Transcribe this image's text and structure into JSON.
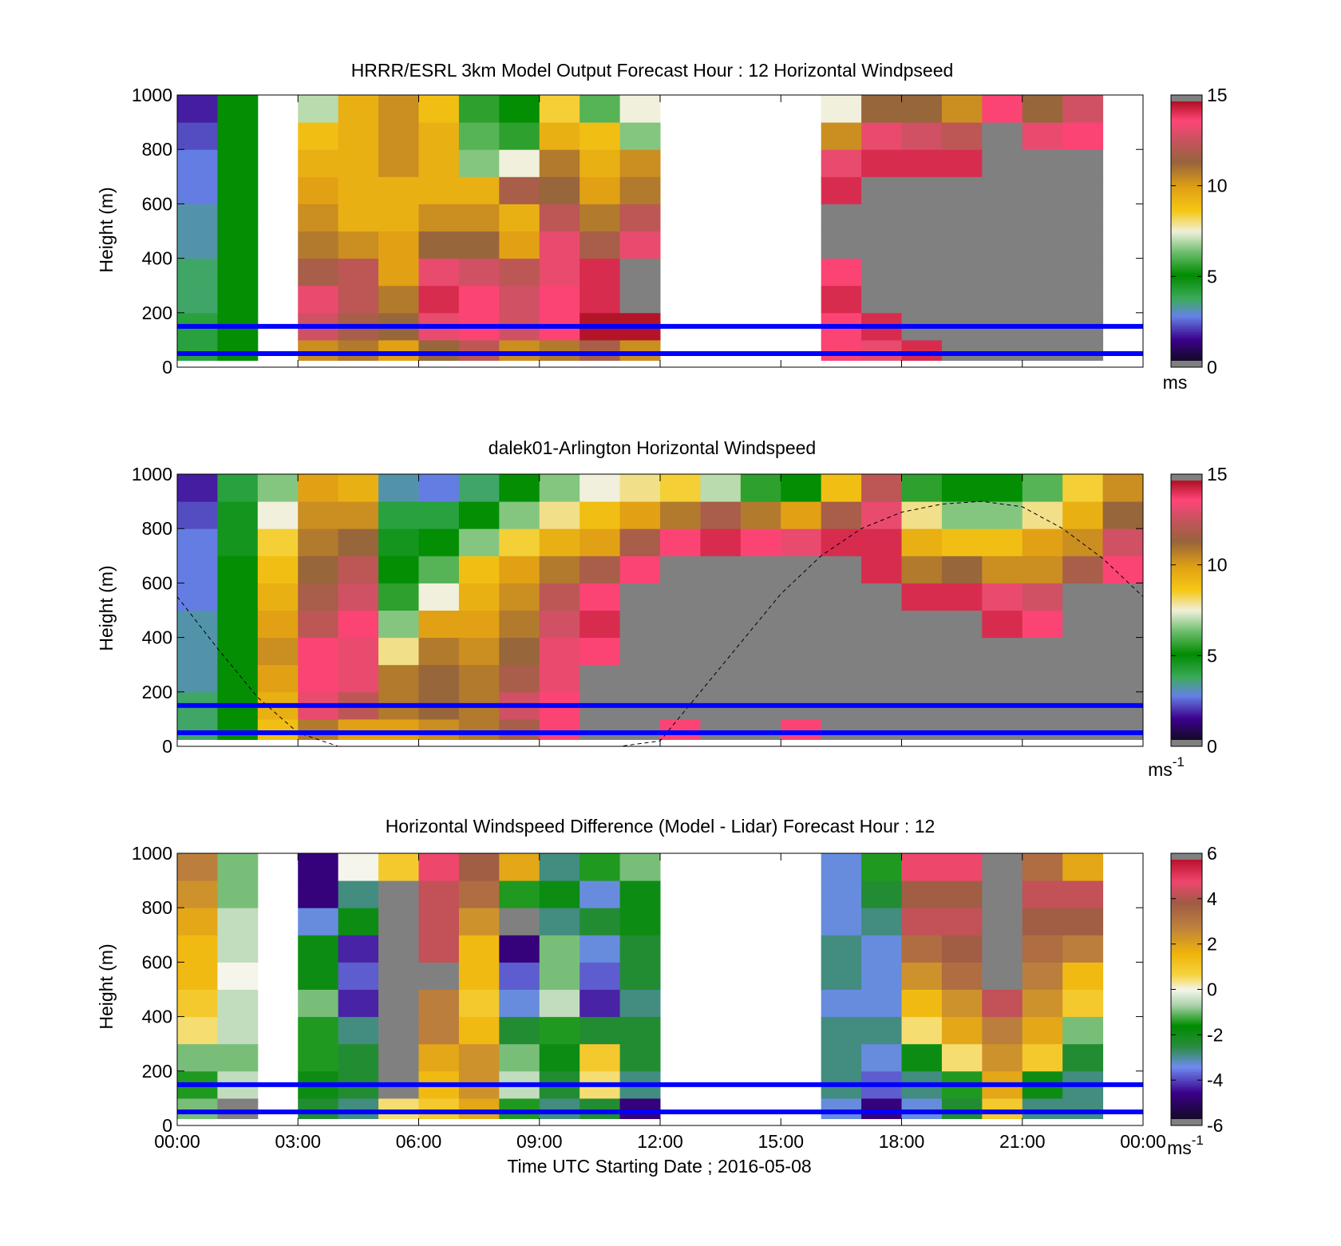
{
  "figure": {
    "xlabel": "Time UTC  Starting Date ; 2016-05-08",
    "x_tick_labels": [
      "00:00",
      "03:00",
      "06:00",
      "09:00",
      "12:00",
      "15:00",
      "18:00",
      "21:00",
      "00:00"
    ],
    "overlay_lines_color": "#0000ff",
    "missing_data_color": "#ffffff"
  },
  "chart_data": [
    {
      "type": "heatmap",
      "title": "HRRR/ESRL 3km Model Output   Forecast Hour : 12 Horizontal Windpseed",
      "ylabel": "Height (m)",
      "xlim_hours": [
        0,
        24
      ],
      "ylim": [
        0,
        1000
      ],
      "y_ticks": [
        0,
        200,
        400,
        600,
        800,
        1000
      ],
      "colorbar": {
        "range": [
          0,
          15
        ],
        "ticks": [
          0,
          5,
          10,
          15
        ],
        "unit": "ms",
        "out_of_range_color": "#808080"
      },
      "horizontal_lines_m": [
        150,
        50
      ],
      "hours": [
        0,
        1,
        3,
        4,
        5,
        6,
        7,
        8,
        9,
        10,
        11,
        16,
        17,
        18,
        19,
        20,
        21,
        22
      ],
      "heights_m": [
        50,
        150,
        250,
        350,
        450,
        550,
        650,
        750,
        850,
        950
      ],
      "values": [
        [
          4.0,
          5.0,
          10.5,
          11.0,
          10.0,
          11.5,
          12.5,
          10.5,
          11.0,
          12.0,
          10.5,
          14.0,
          13.5,
          14.5,
          16.0,
          16.0,
          16.0,
          16.0
        ],
        [
          4.0,
          5.0,
          13.0,
          12.0,
          11.5,
          13.5,
          14.0,
          13.0,
          14.0,
          15.0,
          15.0,
          14.0,
          14.5,
          16.0,
          16.0,
          16.0,
          16.0,
          16.0
        ],
        [
          3.5,
          5.0,
          13.5,
          12.5,
          11.0,
          14.5,
          14.0,
          13.0,
          14.0,
          14.5,
          16.0,
          14.5,
          16.0,
          16.0,
          16.0,
          16.0,
          16.0,
          16.0
        ],
        [
          3.5,
          5.0,
          12.0,
          12.5,
          10.0,
          13.5,
          13.0,
          12.5,
          13.5,
          14.5,
          16.0,
          14.0,
          16.0,
          16.0,
          16.0,
          16.0,
          16.0,
          16.0
        ],
        [
          3.0,
          5.0,
          11.0,
          10.5,
          10.0,
          11.5,
          11.5,
          10.0,
          13.5,
          12.0,
          13.5,
          16.0,
          16.0,
          16.0,
          16.0,
          16.0,
          16.0,
          16.0
        ],
        [
          3.0,
          5.0,
          10.5,
          9.5,
          9.5,
          10.5,
          10.5,
          9.5,
          12.5,
          11.0,
          12.5,
          16.0,
          16.0,
          16.0,
          16.0,
          16.0,
          16.0,
          16.0
        ],
        [
          2.5,
          5.0,
          10.0,
          9.5,
          9.5,
          9.5,
          9.5,
          12.0,
          11.5,
          10.0,
          11.0,
          14.5,
          16.0,
          16.0,
          16.0,
          16.0,
          16.0,
          16.0
        ],
        [
          2.5,
          5.0,
          9.5,
          9.5,
          10.5,
          9.5,
          6.5,
          7.5,
          11.0,
          9.5,
          10.5,
          13.5,
          14.5,
          14.5,
          14.5,
          16.0,
          16.0,
          16.0
        ],
        [
          2.0,
          5.0,
          9.0,
          9.5,
          10.5,
          9.5,
          6.0,
          5.5,
          9.5,
          9.0,
          6.5,
          10.5,
          13.5,
          13.0,
          12.5,
          16.0,
          13.5,
          14.0
        ],
        [
          1.5,
          5.0,
          7.0,
          9.5,
          10.5,
          9.0,
          5.5,
          5.0,
          8.5,
          6.0,
          7.5,
          7.5,
          11.5,
          11.5,
          10.5,
          14.0,
          11.5,
          13.0
        ]
      ]
    },
    {
      "type": "heatmap",
      "title": "dalek01-Arlington  Horizontal Windspeed",
      "ylabel": "Height (m)",
      "xlim_hours": [
        0,
        24
      ],
      "ylim": [
        0,
        1000
      ],
      "y_ticks": [
        0,
        200,
        400,
        600,
        800,
        1000
      ],
      "colorbar": {
        "range": [
          0,
          15
        ],
        "ticks": [
          0,
          5,
          10,
          15
        ],
        "unit": "ms",
        "unit_superscript": "-1",
        "out_of_range_color": "#808080"
      },
      "horizontal_lines_m": [
        150,
        50
      ],
      "dashed_curve": {
        "x_hours": [
          0,
          1,
          2,
          3,
          4,
          5,
          6,
          7,
          8,
          9,
          10,
          11,
          12,
          13,
          14,
          15,
          16,
          17,
          18,
          19,
          20,
          21,
          22,
          23,
          24
        ],
        "y_m": [
          550,
          360,
          180,
          50,
          0,
          0,
          0,
          0,
          0,
          0,
          0,
          0,
          20,
          200,
          380,
          560,
          700,
          800,
          860,
          890,
          900,
          880,
          800,
          690,
          550
        ]
      },
      "hours": [
        0.0,
        1.0,
        2.0,
        3.0,
        4.0,
        5.0,
        6.0,
        7.0,
        8.0,
        9.0,
        10.0,
        11.0,
        12.0,
        13.0,
        14.0,
        15.0,
        16.0,
        17.0,
        18.0,
        19.0,
        20.0,
        21.0,
        22.0,
        23.0
      ],
      "heights_m": [
        50,
        150,
        250,
        350,
        450,
        550,
        650,
        750,
        850,
        950
      ],
      "values": [
        [
          3.5,
          5.0,
          9.0,
          11.0,
          10.0,
          10.0,
          10.5,
          11.0,
          12.0,
          14.0,
          16.0,
          16.0,
          14.0,
          16.0,
          16.0,
          14.0,
          16.0,
          16.0,
          16.0,
          16.0,
          16.0,
          16.0,
          16.0,
          16.0
        ],
        [
          3.5,
          5.0,
          9.5,
          13.5,
          12.5,
          11.0,
          11.5,
          11.0,
          13.0,
          14.0,
          16.0,
          16.0,
          16.0,
          16.0,
          16.0,
          16.0,
          16.0,
          16.0,
          16.0,
          16.0,
          16.0,
          16.0,
          16.0,
          16.0
        ],
        [
          3.0,
          5.0,
          10.0,
          14.0,
          13.5,
          11.0,
          11.5,
          11.0,
          12.0,
          13.5,
          16.0,
          16.0,
          16.0,
          16.0,
          16.0,
          16.0,
          16.0,
          16.0,
          16.0,
          16.0,
          16.0,
          16.0,
          16.0,
          16.0
        ],
        [
          3.0,
          5.0,
          10.5,
          14.0,
          13.5,
          8.0,
          11.0,
          10.5,
          11.5,
          13.5,
          14.0,
          16.0,
          16.0,
          16.0,
          16.0,
          16.0,
          16.0,
          16.0,
          16.0,
          16.0,
          16.0,
          16.0,
          16.0,
          16.0
        ],
        [
          3.0,
          5.0,
          10.0,
          12.5,
          14.0,
          6.5,
          10.0,
          10.0,
          11.0,
          13.0,
          14.5,
          16.0,
          16.0,
          16.0,
          16.0,
          16.0,
          16.0,
          16.0,
          16.0,
          16.0,
          14.5,
          14.0,
          16.0,
          16.0
        ],
        [
          2.5,
          5.0,
          9.5,
          12.0,
          13.0,
          5.5,
          7.5,
          9.5,
          10.5,
          12.5,
          14.0,
          16.0,
          16.0,
          16.0,
          16.0,
          16.0,
          16.0,
          16.0,
          14.5,
          14.5,
          13.5,
          13.0,
          16.0,
          16.0
        ],
        [
          2.5,
          5.0,
          9.0,
          11.5,
          12.5,
          5.0,
          6.0,
          9.0,
          10.0,
          11.0,
          12.0,
          14.0,
          16.0,
          16.0,
          16.0,
          16.0,
          16.0,
          14.5,
          11.0,
          11.5,
          10.5,
          10.5,
          12.0,
          14.0
        ],
        [
          2.5,
          4.5,
          8.5,
          11.0,
          11.5,
          4.5,
          5.0,
          6.5,
          8.5,
          9.5,
          10.0,
          12.0,
          14.0,
          14.5,
          14.0,
          13.5,
          14.5,
          14.5,
          9.5,
          9.0,
          9.0,
          10.0,
          10.5,
          13.0
        ],
        [
          2.0,
          4.5,
          7.5,
          10.5,
          10.5,
          4.0,
          4.0,
          5.0,
          6.5,
          8.0,
          9.0,
          10.0,
          11.0,
          12.0,
          11.0,
          10.0,
          12.0,
          13.5,
          8.0,
          6.5,
          6.5,
          8.0,
          9.5,
          11.5
        ],
        [
          1.5,
          4.0,
          6.5,
          10.0,
          9.5,
          3.0,
          2.5,
          3.5,
          5.0,
          6.5,
          7.5,
          8.0,
          8.5,
          7.0,
          5.5,
          5.0,
          9.0,
          12.5,
          5.5,
          5.0,
          5.0,
          6.0,
          8.5,
          10.5
        ]
      ]
    },
    {
      "type": "heatmap",
      "title": "Horizontal Windspeed Difference (Model - Lidar) Forecast Hour : 12",
      "ylabel": "Height (m)",
      "xlim_hours": [
        0,
        24
      ],
      "ylim": [
        0,
        1000
      ],
      "y_ticks": [
        0,
        200,
        400,
        600,
        800,
        1000
      ],
      "colorbar": {
        "range": [
          -6,
          6
        ],
        "ticks": [
          -6,
          -4,
          -2,
          0,
          2,
          4,
          6
        ],
        "unit": "ms",
        "unit_superscript": "-1",
        "out_of_range_color": "#808080"
      },
      "horizontal_lines_m": [
        150,
        50
      ],
      "hours": [
        0,
        1,
        3,
        4,
        5,
        6,
        7,
        8,
        9,
        10,
        11,
        16,
        17,
        18,
        19,
        20,
        21,
        22
      ],
      "heights_m": [
        50,
        150,
        250,
        350,
        450,
        550,
        650,
        750,
        850,
        950
      ],
      "values": [
        [
          -1.0,
          7.0,
          -2.5,
          -3.0,
          0.5,
          1.0,
          2.0,
          -1.5,
          -3.0,
          -2.5,
          -5.0,
          -3.5,
          -5.0,
          -3.5,
          -2.5,
          1.0,
          -3.0,
          -3.0
        ],
        [
          -1.5,
          -0.5,
          -2.0,
          -2.5,
          7.0,
          1.5,
          2.5,
          -0.5,
          -2.5,
          0.5,
          -3.0,
          -3.0,
          -4.0,
          -3.0,
          -1.5,
          2.0,
          -2.0,
          -3.0
        ],
        [
          -1.0,
          -1.0,
          -1.5,
          -2.5,
          7.0,
          2.0,
          2.5,
          -1.0,
          -2.0,
          1.0,
          -2.5,
          -3.0,
          -3.5,
          -2.0,
          0.5,
          2.5,
          1.0,
          -2.5
        ],
        [
          0.5,
          -0.5,
          -1.5,
          -3.0,
          7.0,
          3.0,
          1.5,
          -2.5,
          -1.5,
          -2.5,
          -2.5,
          -3.0,
          -3.0,
          0.5,
          2.0,
          3.0,
          2.0,
          -1.0
        ],
        [
          1.0,
          -0.5,
          -1.0,
          -4.5,
          7.0,
          3.0,
          1.0,
          -3.5,
          -0.5,
          -4.5,
          -3.0,
          -3.5,
          -3.5,
          1.5,
          2.5,
          4.5,
          2.5,
          1.0
        ],
        [
          1.5,
          0.0,
          -2.0,
          -4.0,
          7.0,
          7.0,
          1.5,
          -4.0,
          -1.0,
          -4.0,
          -2.5,
          -3.0,
          -3.5,
          2.5,
          3.5,
          7.0,
          3.0,
          1.5
        ],
        [
          1.5,
          -0.5,
          -2.0,
          -4.5,
          7.0,
          4.5,
          1.5,
          -5.0,
          -1.0,
          -3.5,
          -2.5,
          -3.0,
          -3.5,
          3.5,
          4.0,
          7.0,
          3.5,
          3.0
        ],
        [
          2.0,
          -0.5,
          -3.5,
          -2.0,
          7.0,
          4.5,
          2.5,
          7.0,
          -3.0,
          -2.5,
          -2.0,
          -3.5,
          -3.0,
          4.5,
          4.5,
          7.0,
          4.0,
          4.0
        ],
        [
          2.5,
          -1.0,
          -5.0,
          -3.0,
          7.0,
          4.5,
          3.5,
          -1.5,
          -2.0,
          -3.5,
          -2.0,
          -3.5,
          -2.5,
          4.0,
          4.0,
          7.0,
          4.5,
          4.5
        ],
        [
          3.0,
          -1.0,
          -5.0,
          0.0,
          1.0,
          5.0,
          4.0,
          2.0,
          -3.0,
          -1.5,
          -1.0,
          -3.5,
          -1.5,
          5.0,
          5.0,
          7.0,
          3.5,
          2.0
        ]
      ]
    }
  ]
}
